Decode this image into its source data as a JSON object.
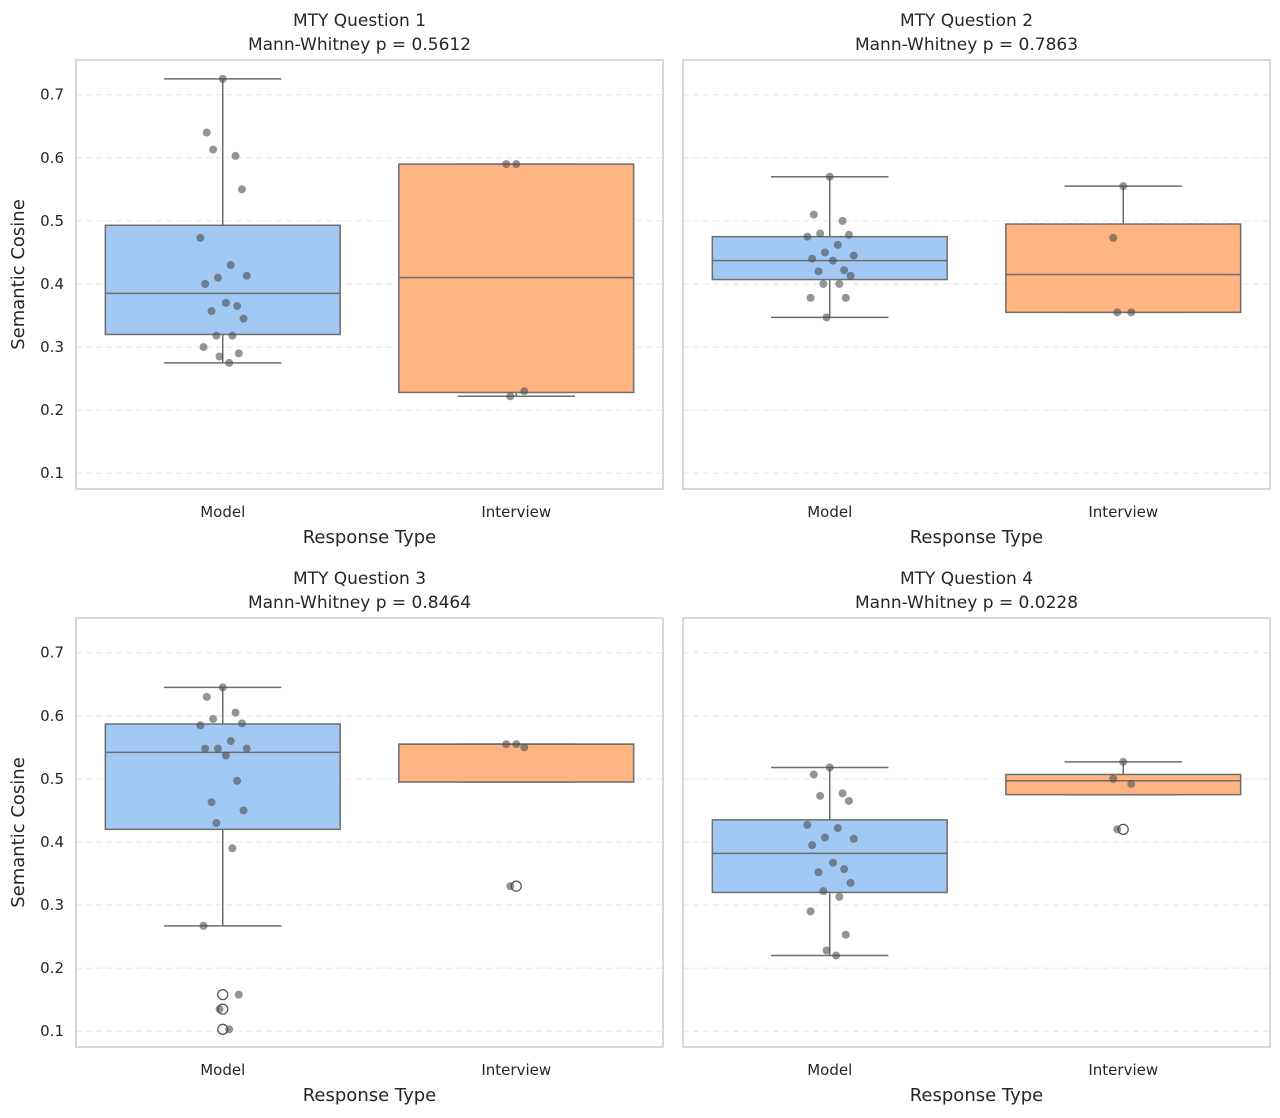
{
  "shared": {
    "ylabel": "Semantic Cosine",
    "xlabel": "Response Type",
    "yticks": [
      "0.1",
      "0.2",
      "0.3",
      "0.4",
      "0.5",
      "0.6",
      "0.7"
    ],
    "categories": [
      "Model",
      "Interview"
    ],
    "colors": {
      "Model": "#a1c9f4",
      "Interview": "#ffb482",
      "points": "#4d4d4d",
      "median": "#6e6e6e",
      "grid": "#e6e6e6",
      "frame": "#cccccc"
    }
  },
  "chart_data": [
    {
      "type": "box",
      "title": "MTY Question 1",
      "subtitle": "Mann-Whitney p = 0.5612",
      "ylim": [
        0.075,
        0.755
      ],
      "boxes": [
        {
          "category": "Model",
          "q1": 0.32,
          "median": 0.385,
          "q3": 0.493,
          "whisker_low": 0.275,
          "whisker_high": 0.725,
          "outliers": []
        },
        {
          "category": "Interview",
          "q1": 0.228,
          "median": 0.41,
          "q3": 0.59,
          "whisker_low": 0.222,
          "whisker_high": 0.59,
          "outliers": []
        }
      ],
      "points": [
        {
          "category": "Model",
          "values": [
            0.725,
            0.64,
            0.603,
            0.613,
            0.55,
            0.473,
            0.43,
            0.41,
            0.413,
            0.4,
            0.37,
            0.365,
            0.357,
            0.345,
            0.318,
            0.318,
            0.3,
            0.29,
            0.285,
            0.275
          ]
        },
        {
          "category": "Interview",
          "values": [
            0.59,
            0.59,
            0.23,
            0.222
          ]
        }
      ]
    },
    {
      "type": "box",
      "title": "MTY Question 2",
      "subtitle": "Mann-Whitney p = 0.7863",
      "ylim": [
        0.075,
        0.755
      ],
      "boxes": [
        {
          "category": "Model",
          "q1": 0.407,
          "median": 0.437,
          "q3": 0.475,
          "whisker_low": 0.347,
          "whisker_high": 0.57,
          "outliers": []
        },
        {
          "category": "Interview",
          "q1": 0.355,
          "median": 0.415,
          "q3": 0.495,
          "whisker_low": 0.355,
          "whisker_high": 0.555,
          "outliers": []
        }
      ],
      "points": [
        {
          "category": "Model",
          "values": [
            0.57,
            0.51,
            0.5,
            0.48,
            0.478,
            0.475,
            0.462,
            0.45,
            0.445,
            0.44,
            0.437,
            0.422,
            0.42,
            0.413,
            0.4,
            0.4,
            0.378,
            0.378,
            0.347
          ]
        },
        {
          "category": "Interview",
          "values": [
            0.555,
            0.473,
            0.355,
            0.355
          ]
        }
      ]
    },
    {
      "type": "box",
      "title": "MTY Question 3",
      "subtitle": "Mann-Whitney p = 0.8464",
      "ylim": [
        0.075,
        0.755
      ],
      "boxes": [
        {
          "category": "Model",
          "q1": 0.42,
          "median": 0.542,
          "q3": 0.587,
          "whisker_low": 0.267,
          "whisker_high": 0.645,
          "outliers": [
            0.158,
            0.135,
            0.103
          ]
        },
        {
          "category": "Interview",
          "q1": 0.495,
          "median": 0.555,
          "q3": 0.555,
          "whisker_low": 0.495,
          "whisker_high": 0.555,
          "outliers": [
            0.33
          ]
        }
      ],
      "points": [
        {
          "category": "Model",
          "values": [
            0.645,
            0.63,
            0.605,
            0.595,
            0.588,
            0.585,
            0.56,
            0.548,
            0.548,
            0.548,
            0.537,
            0.497,
            0.463,
            0.45,
            0.43,
            0.39,
            0.267,
            0.158,
            0.135,
            0.103
          ]
        },
        {
          "category": "Interview",
          "values": [
            0.555,
            0.555,
            0.55,
            0.33
          ]
        }
      ]
    },
    {
      "type": "box",
      "title": "MTY Question 4",
      "subtitle": "Mann-Whitney p = 0.0228",
      "ylim": [
        0.075,
        0.755
      ],
      "boxes": [
        {
          "category": "Model",
          "q1": 0.32,
          "median": 0.382,
          "q3": 0.435,
          "whisker_low": 0.22,
          "whisker_high": 0.518,
          "outliers": []
        },
        {
          "category": "Interview",
          "q1": 0.475,
          "median": 0.497,
          "q3": 0.507,
          "whisker_low": 0.475,
          "whisker_high": 0.527,
          "outliers": [
            0.42
          ]
        }
      ],
      "points": [
        {
          "category": "Model",
          "values": [
            0.518,
            0.507,
            0.477,
            0.473,
            0.465,
            0.427,
            0.422,
            0.407,
            0.405,
            0.395,
            0.367,
            0.357,
            0.352,
            0.335,
            0.322,
            0.313,
            0.29,
            0.253,
            0.228,
            0.22
          ]
        },
        {
          "category": "Interview",
          "values": [
            0.527,
            0.5,
            0.492,
            0.42
          ]
        }
      ]
    }
  ]
}
